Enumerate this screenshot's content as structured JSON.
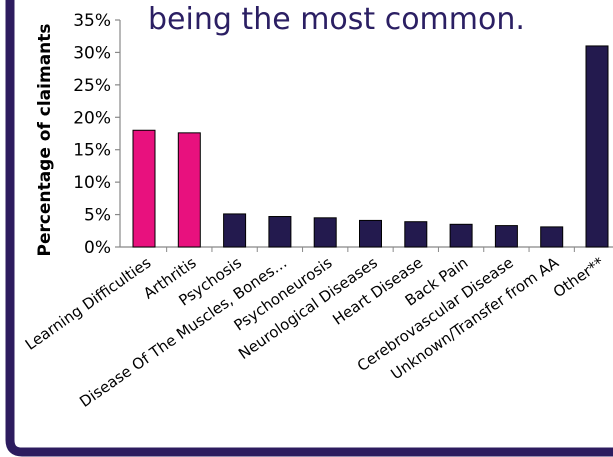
{
  "heading_fragment": "being the most common.",
  "colors": {
    "highlight": "#e8117e",
    "primary": "#231a4e",
    "frame": "#2d1c5f",
    "heading": "#2b1f63"
  },
  "chart_data": {
    "type": "bar",
    "ylabel": "Percentage of claimants",
    "ylim": [
      0,
      35
    ],
    "yticks": [
      0,
      5,
      10,
      15,
      20,
      25,
      30,
      35
    ],
    "yticklabels": [
      "0%",
      "5%",
      "10%",
      "15%",
      "20%",
      "25%",
      "30%",
      "35%"
    ],
    "categories": [
      "Learning Difficulties",
      "Arthritis",
      "Psychosis",
      "Disease Of The Muscles, Bones…",
      "Psychoneurosis",
      "Neurological Diseases",
      "Heart Disease",
      "Back Pain",
      "Cerebrovascular Disease",
      "Unknown/Transfer from AA",
      "Other**"
    ],
    "values": [
      18.0,
      17.6,
      5.1,
      4.7,
      4.5,
      4.1,
      3.9,
      3.5,
      3.3,
      3.1,
      31.0
    ],
    "highlighted": [
      true,
      true,
      false,
      false,
      false,
      false,
      false,
      false,
      false,
      false,
      false
    ],
    "grid": false,
    "legend": "none"
  }
}
